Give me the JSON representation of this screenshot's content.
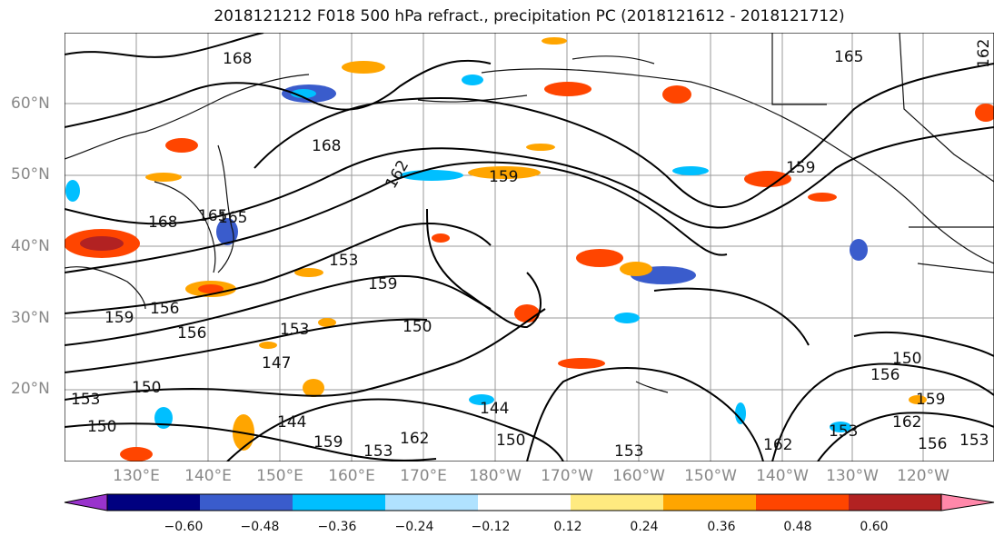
{
  "title": "2018121212 F018 500 hPa refract., precipitation PC (2018121612 - 2018121712)",
  "map": {
    "lat_labels": [
      "60°N",
      "50°N",
      "40°N",
      "30°N",
      "20°N"
    ],
    "lon_labels": [
      "130°E",
      "140°E",
      "150°E",
      "160°E",
      "170°E",
      "180°W",
      "170°W",
      "160°W",
      "150°W",
      "140°W",
      "130°W",
      "120°W"
    ],
    "contour_labels": [
      "168",
      "165",
      "162",
      "168",
      "165",
      "168",
      "162",
      "159",
      "159",
      "165",
      "153",
      "159",
      "156",
      "159",
      "156",
      "153",
      "150",
      "147",
      "150",
      "153",
      "144",
      "150",
      "159",
      "162",
      "153",
      "144",
      "150",
      "162",
      "150",
      "156",
      "159",
      "162",
      "153",
      "156",
      "153",
      "153"
    ],
    "colors": {
      "land_outline": "#111111",
      "grid": "#9a9a9a",
      "contour": "#000000"
    }
  },
  "colorbar": {
    "colors": [
      "#9933cc",
      "#000080",
      "#3a5ccc",
      "#00bfff",
      "#b0e2ff",
      "#ffffff",
      "#ffea80",
      "#ffa500",
      "#ff4500",
      "#b22222",
      "#ff88aa"
    ],
    "tick_labels": [
      "−0.60",
      "−0.48",
      "−0.36",
      "−0.24",
      "−0.12",
      "0.12",
      "0.24",
      "0.36",
      "0.48",
      "0.60"
    ]
  }
}
